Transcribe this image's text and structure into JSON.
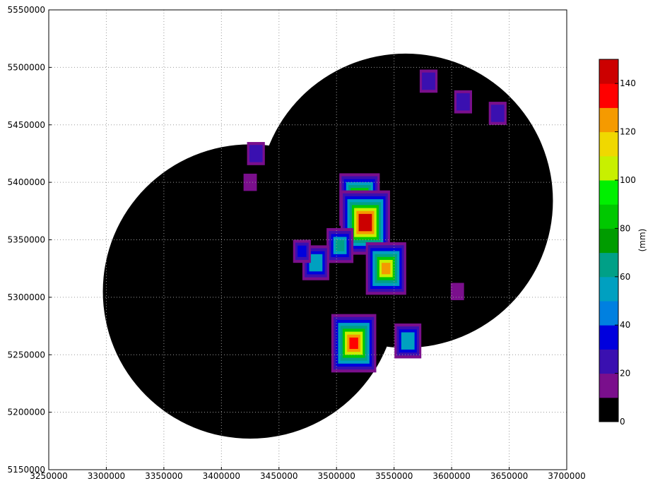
{
  "chart_data": [
    {
      "type": "heatmap",
      "title": "",
      "xlabel": "",
      "ylabel": "",
      "xlim": [
        3250000,
        3700000
      ],
      "ylim": [
        5150000,
        5550000
      ],
      "x_ticks": [
        3250000,
        3300000,
        3350000,
        3400000,
        3450000,
        3500000,
        3550000,
        3600000,
        3650000,
        3700000
      ],
      "y_ticks": [
        5150000,
        5200000,
        5250000,
        5300000,
        5350000,
        5400000,
        5450000,
        5500000,
        5550000
      ],
      "grid": true,
      "background": "#ffffff",
      "radar_coverage": [
        {
          "name": "",
          "center": [
            3425000,
            5305000
          ],
          "radius": 128000
        },
        {
          "name": "",
          "center": [
            3560000,
            5384000
          ],
          "radius": 128000
        }
      ],
      "precipitation_cells_mm": [
        {
          "x": 3430000,
          "y": 5425000,
          "value": 25
        },
        {
          "x": 3425000,
          "y": 5400000,
          "value": 15
        },
        {
          "x": 3520000,
          "y": 5385000,
          "value": 105
        },
        {
          "x": 3525000,
          "y": 5365000,
          "value": 140
        },
        {
          "x": 3503000,
          "y": 5345000,
          "value": 60
        },
        {
          "x": 3482000,
          "y": 5330000,
          "value": 50
        },
        {
          "x": 3470000,
          "y": 5340000,
          "value": 30
        },
        {
          "x": 3543000,
          "y": 5325000,
          "value": 120
        },
        {
          "x": 3515000,
          "y": 5260000,
          "value": 130
        },
        {
          "x": 3562000,
          "y": 5262000,
          "value": 55
        },
        {
          "x": 3610000,
          "y": 5470000,
          "value": 25
        },
        {
          "x": 3580000,
          "y": 5488000,
          "value": 20
        },
        {
          "x": 3640000,
          "y": 5460000,
          "value": 20
        },
        {
          "x": 3605000,
          "y": 5305000,
          "value": 15
        }
      ]
    },
    {
      "type": "colorbar",
      "label": "(mm)",
      "range": [
        0,
        150
      ],
      "ticks": [
        0,
        20,
        40,
        60,
        80,
        100,
        120,
        140
      ],
      "levels": [
        {
          "from": 0,
          "to": 10,
          "color": "#000000"
        },
        {
          "from": 10,
          "to": 20,
          "color": "#7a0f8c"
        },
        {
          "from": 20,
          "to": 30,
          "color": "#3a10b0"
        },
        {
          "from": 30,
          "to": 40,
          "color": "#0000dd"
        },
        {
          "from": 40,
          "to": 50,
          "color": "#0080e0"
        },
        {
          "from": 50,
          "to": 60,
          "color": "#00a0c0"
        },
        {
          "from": 60,
          "to": 70,
          "color": "#00a087"
        },
        {
          "from": 70,
          "to": 80,
          "color": "#009c00"
        },
        {
          "from": 80,
          "to": 90,
          "color": "#00c800"
        },
        {
          "from": 90,
          "to": 100,
          "color": "#00f000"
        },
        {
          "from": 100,
          "to": 110,
          "color": "#c8f000"
        },
        {
          "from": 110,
          "to": 120,
          "color": "#f0d800"
        },
        {
          "from": 120,
          "to": 130,
          "color": "#f59a00"
        },
        {
          "from": 130,
          "to": 140,
          "color": "#ff0000"
        },
        {
          "from": 140,
          "to": 150,
          "color": "#cc0000"
        }
      ]
    }
  ]
}
